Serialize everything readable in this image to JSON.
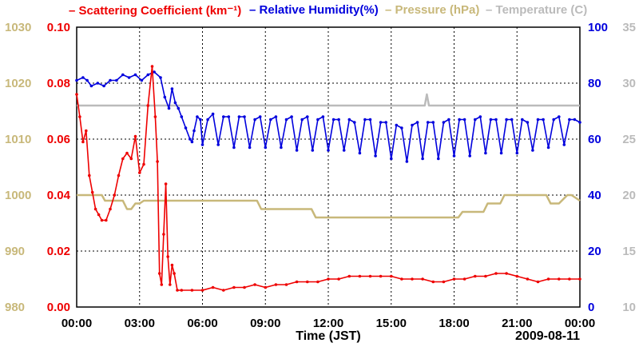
{
  "chart_data": {
    "type": "line",
    "title": "",
    "legend": [
      {
        "name": "Scattering Coefficient (km⁻¹)",
        "color": "#ee0000"
      },
      {
        "name": "Relative Humidity(%)",
        "color": "#0000dd"
      },
      {
        "name": "Pressure (hPa)",
        "color": "#c8b87a"
      },
      {
        "name": "Temperature (C)",
        "color": "#bbbbbb"
      }
    ],
    "legend_separator": "–",
    "xlabel": "Time (JST)",
    "date_label": "2009-08-11",
    "x_range_hours": [
      0,
      24
    ],
    "x_ticks": [
      "00:00",
      "03:00",
      "06:00",
      "09:00",
      "12:00",
      "15:00",
      "18:00",
      "21:00",
      "00:00"
    ],
    "axes": {
      "scattering": {
        "ylim": [
          0.0,
          0.1
        ],
        "ticks": [
          "0.00",
          "0.02",
          "0.04",
          "0.06",
          "0.08",
          "0.10"
        ],
        "color": "#ee0000"
      },
      "pressure": {
        "ylim": [
          980,
          1030
        ],
        "ticks": [
          "980",
          "990",
          "1000",
          "1010",
          "1020",
          "1030"
        ],
        "color": "#c8b87a"
      },
      "humidity": {
        "ylim": [
          0,
          100
        ],
        "ticks": [
          "0",
          "20",
          "40",
          "60",
          "80",
          "100"
        ],
        "color": "#0000dd"
      },
      "temperature": {
        "ylim": [
          10,
          35
        ],
        "ticks": [
          "10",
          "15",
          "20",
          "25",
          "30",
          "35"
        ],
        "color": "#bbbbbb"
      }
    },
    "series": [
      {
        "name": "Scattering Coefficient",
        "axis": "scattering",
        "x": [
          0.0,
          0.15,
          0.3,
          0.45,
          0.6,
          0.75,
          0.9,
          1.05,
          1.2,
          1.4,
          1.6,
          1.8,
          2.0,
          2.2,
          2.4,
          2.6,
          2.8,
          3.0,
          3.2,
          3.4,
          3.6,
          3.75,
          3.85,
          3.95,
          4.05,
          4.15,
          4.25,
          4.35,
          4.45,
          4.55,
          4.65,
          4.8,
          5.0,
          5.5,
          6.0,
          6.5,
          7.0,
          7.5,
          8.0,
          8.5,
          9.0,
          9.5,
          10.0,
          10.5,
          11.0,
          11.5,
          12.0,
          12.5,
          13.0,
          13.5,
          14.0,
          14.5,
          15.0,
          15.5,
          16.0,
          16.5,
          17.0,
          17.5,
          18.0,
          18.5,
          19.0,
          19.5,
          20.0,
          20.5,
          21.0,
          21.5,
          22.0,
          22.5,
          23.0,
          23.5,
          24.0
        ],
        "values": [
          0.076,
          0.068,
          0.059,
          0.063,
          0.047,
          0.041,
          0.035,
          0.033,
          0.031,
          0.031,
          0.035,
          0.04,
          0.047,
          0.053,
          0.055,
          0.053,
          0.061,
          0.048,
          0.051,
          0.072,
          0.086,
          0.068,
          0.052,
          0.012,
          0.008,
          0.026,
          0.044,
          0.018,
          0.008,
          0.015,
          0.012,
          0.006,
          0.006,
          0.006,
          0.006,
          0.007,
          0.006,
          0.007,
          0.007,
          0.008,
          0.007,
          0.008,
          0.008,
          0.009,
          0.009,
          0.009,
          0.01,
          0.01,
          0.011,
          0.011,
          0.011,
          0.011,
          0.011,
          0.01,
          0.01,
          0.01,
          0.009,
          0.009,
          0.01,
          0.01,
          0.011,
          0.011,
          0.012,
          0.012,
          0.011,
          0.01,
          0.009,
          0.01,
          0.01,
          0.01,
          0.01
        ]
      },
      {
        "name": "Relative Humidity",
        "axis": "humidity",
        "x": [
          0.0,
          0.3,
          0.5,
          0.7,
          1.0,
          1.3,
          1.6,
          1.9,
          2.2,
          2.5,
          2.8,
          3.1,
          3.4,
          3.7,
          4.0,
          4.2,
          4.4,
          4.55,
          4.7,
          4.85,
          5.0,
          5.2,
          5.4,
          5.5,
          5.6,
          5.75,
          5.9,
          6.0,
          6.25,
          6.5,
          6.75,
          7.0,
          7.25,
          7.5,
          7.75,
          8.0,
          8.25,
          8.5,
          8.75,
          9.0,
          9.25,
          9.5,
          9.75,
          10.0,
          10.25,
          10.5,
          10.75,
          11.0,
          11.25,
          11.5,
          11.75,
          12.0,
          12.25,
          12.5,
          12.75,
          13.0,
          13.25,
          13.5,
          13.75,
          14.0,
          14.25,
          14.5,
          14.75,
          15.0,
          15.25,
          15.5,
          15.75,
          16.0,
          16.25,
          16.5,
          16.75,
          17.0,
          17.25,
          17.5,
          17.75,
          18.0,
          18.25,
          18.5,
          18.75,
          19.0,
          19.25,
          19.5,
          19.75,
          20.0,
          20.25,
          20.5,
          20.75,
          21.0,
          21.25,
          21.5,
          21.75,
          22.0,
          22.25,
          22.5,
          22.75,
          23.0,
          23.25,
          23.5,
          23.75,
          24.0
        ],
        "values": [
          81,
          82,
          81,
          79,
          80,
          79,
          81,
          81,
          83,
          82,
          83,
          81,
          83,
          84,
          82,
          75,
          71,
          78,
          73,
          71,
          68,
          64,
          60,
          59,
          63,
          68,
          67,
          58,
          67,
          69,
          58,
          68,
          68,
          57,
          68,
          68,
          57,
          67,
          68,
          57,
          67,
          68,
          57,
          67,
          68,
          56,
          67,
          68,
          56,
          67,
          68,
          56,
          67,
          67,
          56,
          67,
          66,
          55,
          67,
          67,
          54,
          66,
          66,
          53,
          65,
          64,
          52,
          65,
          66,
          53,
          66,
          66,
          53,
          66,
          67,
          54,
          67,
          67,
          54,
          67,
          68,
          55,
          67,
          67,
          55,
          67,
          67,
          55,
          67,
          66,
          56,
          67,
          67,
          57,
          67,
          68,
          58,
          67,
          67,
          66
        ]
      },
      {
        "name": "Pressure",
        "axis": "pressure",
        "x": [
          0.0,
          1.2,
          1.35,
          2.2,
          2.4,
          2.6,
          2.8,
          3.0,
          3.2,
          3.4,
          5.0,
          8.6,
          8.8,
          11.2,
          11.4,
          18.2,
          18.4,
          19.4,
          19.6,
          20.2,
          20.4,
          22.4,
          22.6,
          23.0,
          23.4,
          23.6,
          24.0
        ],
        "values": [
          1000,
          1000,
          999,
          999,
          997.5,
          997.5,
          998.5,
          998.5,
          999,
          999,
          999,
          999,
          997.5,
          997.5,
          996,
          996,
          997,
          997,
          998.5,
          998.5,
          1000,
          1000,
          998.5,
          998.5,
          1000,
          1000,
          999
        ]
      },
      {
        "name": "Temperature",
        "axis": "temperature",
        "x": [
          0.0,
          16.6,
          16.7,
          16.8,
          24.0
        ],
        "values": [
          28.0,
          28.0,
          29.0,
          28.0,
          28.0
        ]
      }
    ]
  }
}
